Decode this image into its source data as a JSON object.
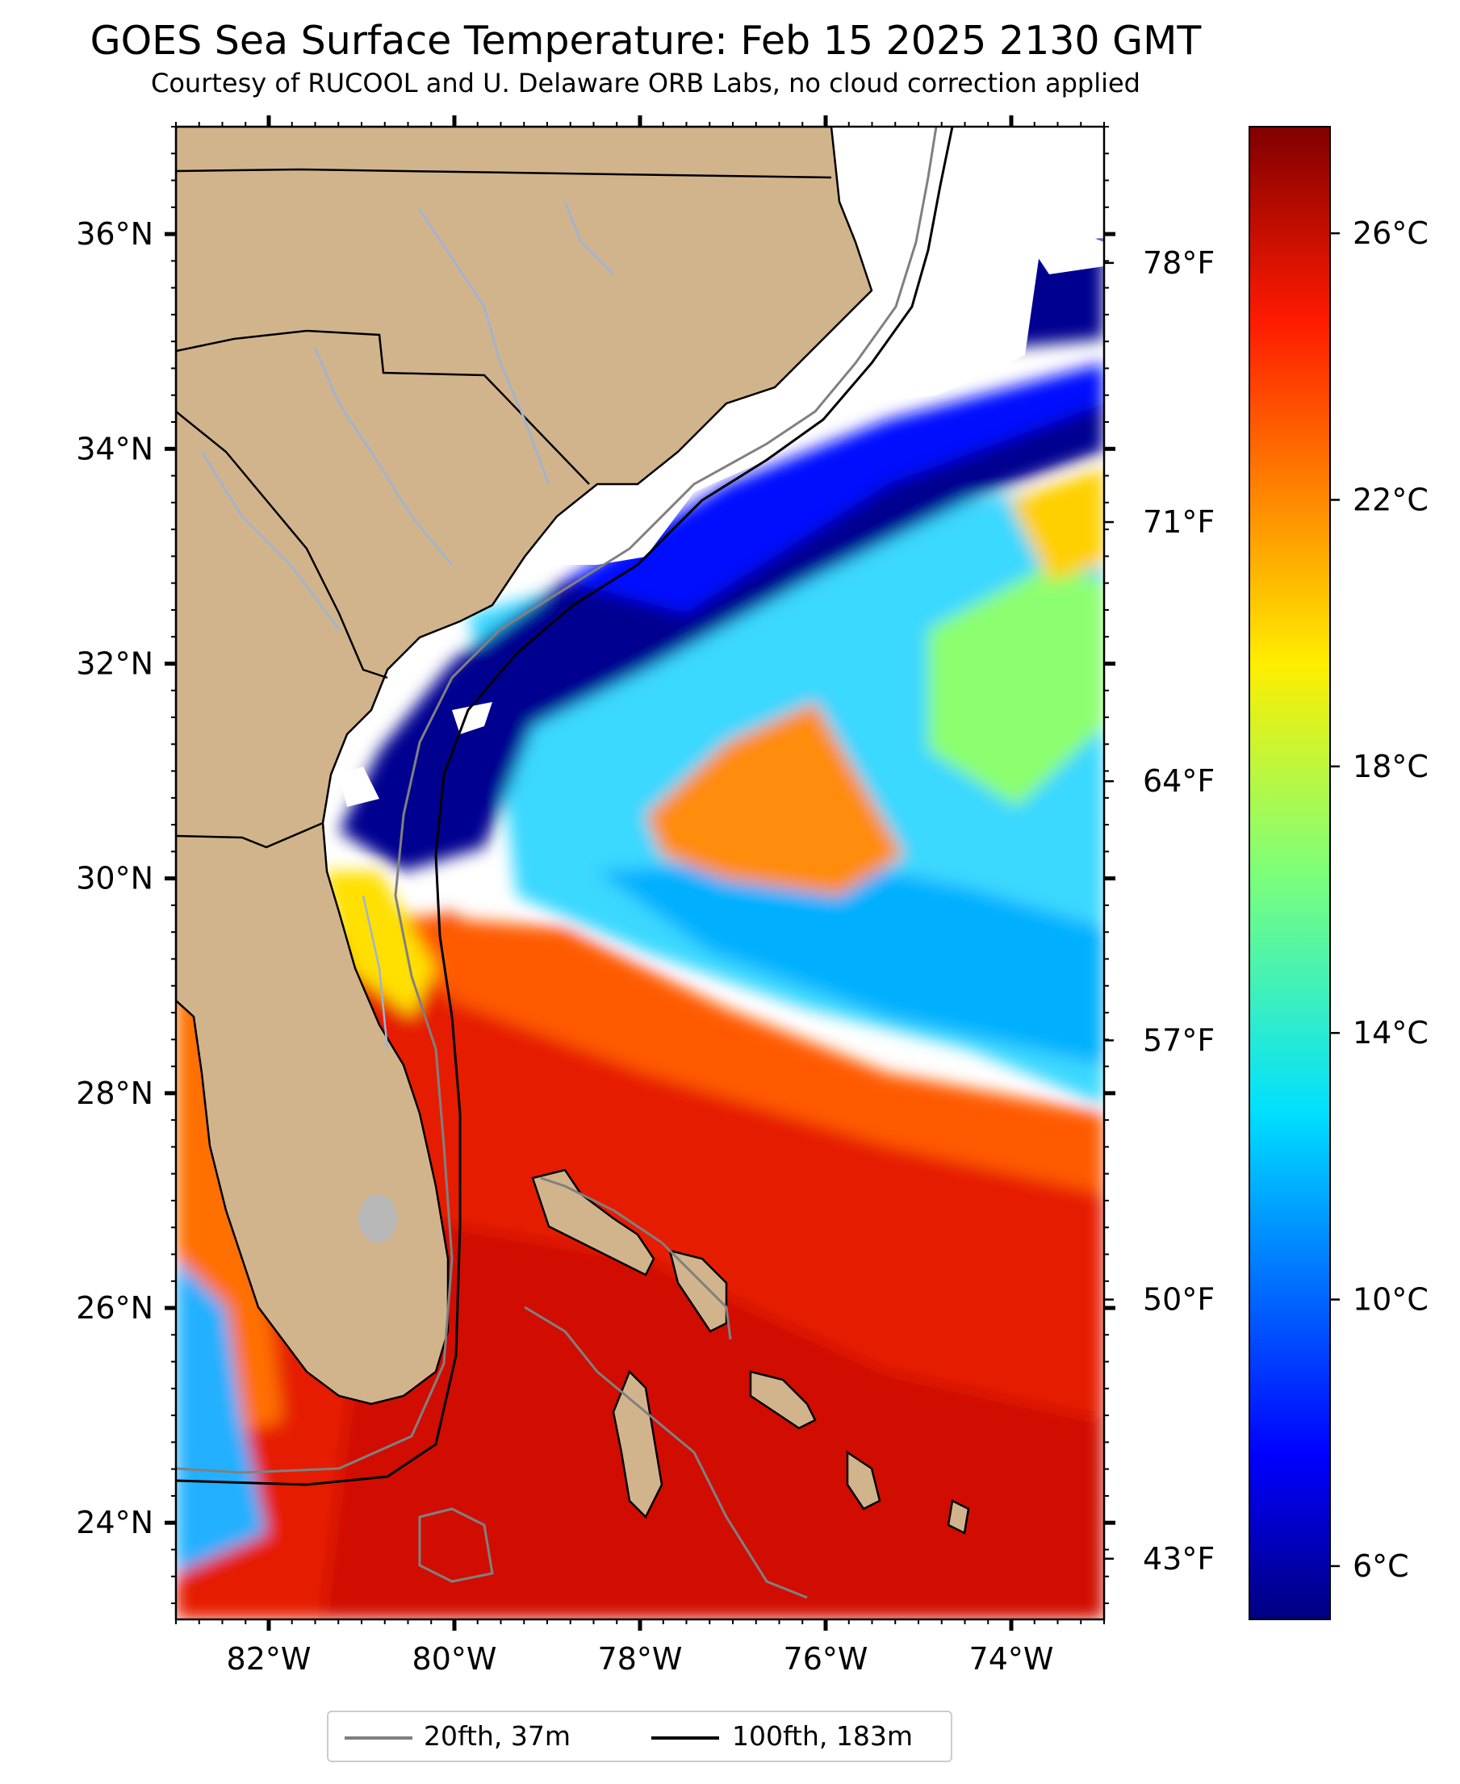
{
  "title": "GOES Sea Surface Temperature: Feb 15 2025 2130 GMT",
  "subtitle": "Courtesy of RUCOOL and U. Delaware ORB Labs, no cloud correction applied",
  "map": {
    "lon_range": [
      -83,
      -73
    ],
    "lat_range": [
      23.1,
      37.0
    ],
    "lon_ticks": [
      {
        "value": -82,
        "label": "82°W"
      },
      {
        "value": -80,
        "label": "80°W"
      },
      {
        "value": -78,
        "label": "78°W"
      },
      {
        "value": -76,
        "label": "76°W"
      },
      {
        "value": -74,
        "label": "74°W"
      }
    ],
    "lat_ticks": [
      {
        "value": 36,
        "label": "36°N"
      },
      {
        "value": 34,
        "label": "34°N"
      },
      {
        "value": 32,
        "label": "32°N"
      },
      {
        "value": 30,
        "label": "30°N"
      },
      {
        "value": 28,
        "label": "28°N"
      },
      {
        "value": 26,
        "label": "26°N"
      },
      {
        "value": 24,
        "label": "24°N"
      }
    ],
    "fahrenheit_ticks": [
      {
        "value": 78,
        "label": "78°F"
      },
      {
        "value": 71,
        "label": "71°F"
      },
      {
        "value": 64,
        "label": "64°F"
      },
      {
        "value": 57,
        "label": "57°F"
      },
      {
        "value": 50,
        "label": "50°F"
      },
      {
        "value": 43,
        "label": "43°F"
      }
    ],
    "colors": {
      "land": "#d2b48c",
      "cloud_no_data": "#ffffff",
      "coastline": "#000000",
      "rivers": "#9bb4d8",
      "lake": "#b8b8b8"
    }
  },
  "colorbar": {
    "colormap": "jet",
    "range_c": [
      5.2,
      27.6
    ],
    "ticks": [
      {
        "value": 26,
        "label": "26°C"
      },
      {
        "value": 22,
        "label": "22°C"
      },
      {
        "value": 18,
        "label": "18°C"
      },
      {
        "value": 14,
        "label": "14°C"
      },
      {
        "value": 10,
        "label": "10°C"
      },
      {
        "value": 6,
        "label": "6°C"
      }
    ]
  },
  "legend": {
    "items": [
      {
        "label": "20fth, 37m",
        "color": "#808080"
      },
      {
        "label": "100fth, 183m",
        "color": "#000000"
      }
    ]
  }
}
